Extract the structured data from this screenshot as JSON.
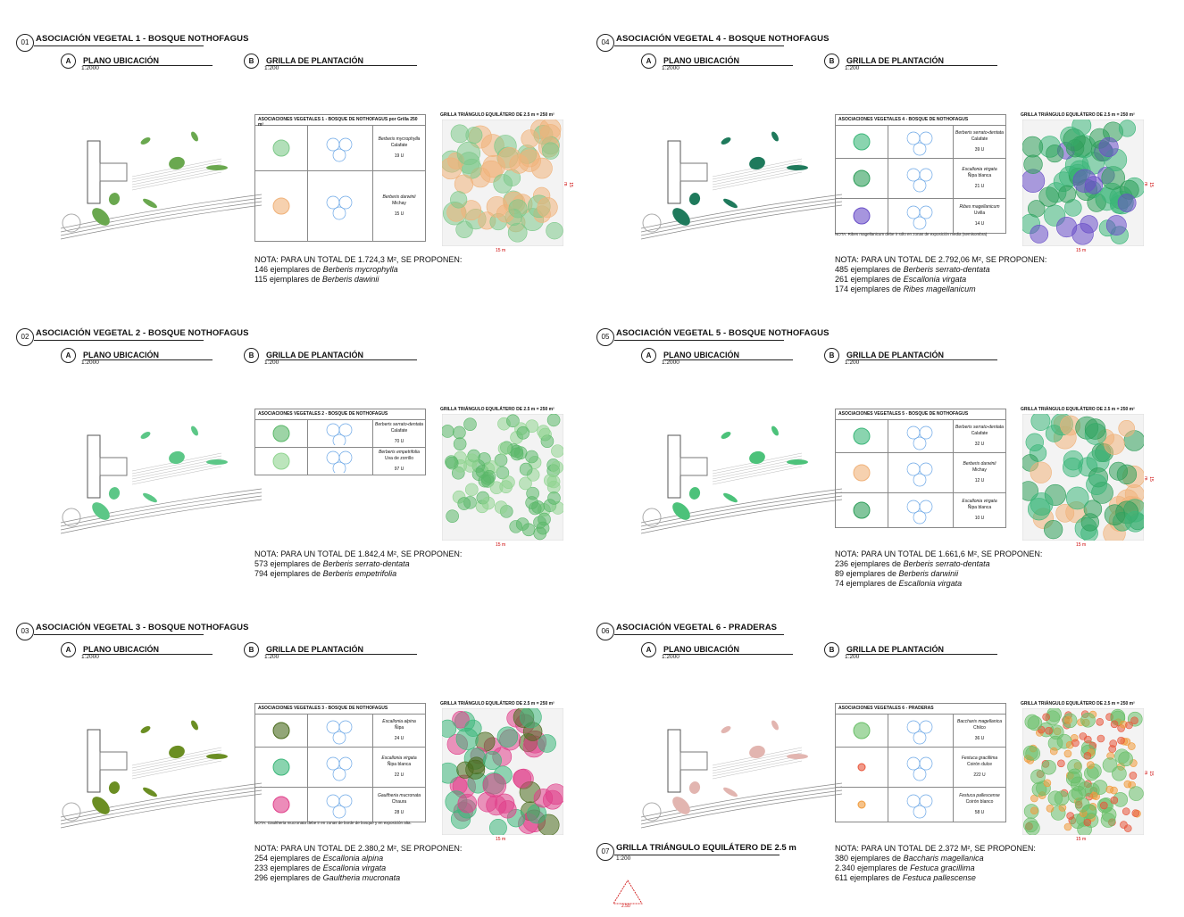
{
  "panels": [
    {
      "num": "01",
      "title": "ASOCIACIÓN VEGETAL 1  - BOSQUE NOTHOFAGUS",
      "a_letter": "A",
      "a_label": "PLANO UBICACIÓN",
      "a_scale": "1:2000",
      "b_letter": "B",
      "b_label": "GRILLA DE PLANTACIÓN",
      "b_scale": "1:200",
      "table_title": "ASOCIACIONES VEGETALES 1 - BOSQUE DE NOTHOFAGUS por Grilla 250 m²",
      "grid_title": "GRILLA TRIÁNGULO EQUILÁTERO DE 2.5 m = 250 m²",
      "grid_dim_h": "15 m",
      "grid_dim_v": "15 m",
      "rows": [
        {
          "species": "Berberis mycrophylla",
          "common": "Calafate",
          "units": "19 U",
          "color": "#7ec98a"
        },
        {
          "species": "Berberis darwinii",
          "common": "Michay",
          "units": "15 U",
          "color": "#f0b27a"
        }
      ],
      "note_header": "NOTA: PARA UN TOTAL DE 1.724,3 M², SE PROPONEN:",
      "note_lines": [
        {
          "count": "146 ejemplares de ",
          "species": "Berberis mycrophylla"
        },
        {
          "count": "115 ejemplares de ",
          "species": "Berberis dawinii"
        }
      ],
      "note_extra": "",
      "site_color": "#6aa84f",
      "grid_colors": [
        "#7ec98a",
        "#f0b27a"
      ]
    },
    {
      "num": "02",
      "title": "ASOCIACIÓN VEGETAL 2  - BOSQUE NOTHOFAGUS",
      "a_letter": "A",
      "a_label": "PLANO UBICACIÓN",
      "a_scale": "1:2000",
      "b_letter": "B",
      "b_label": "GRILLA DE PLANTACIÓN",
      "b_scale": "1:200",
      "table_title": "ASOCIACIONES VEGETALES 2 - BOSQUE DE NOTHOFAGUS",
      "grid_title": "GRILLA TRIÁNGULO EQUILÁTERO DE 2.5 m = 250 m²",
      "grid_dim_h": "15 m",
      "grid_dim_v": "",
      "rows": [
        {
          "species": "Berberis serrato-dentata",
          "common": "Calafate",
          "units": "70 U",
          "color": "#5bb86a"
        },
        {
          "species": "Berberis empetrifolia",
          "common": "Uva de zorrillo",
          "units": "97 U",
          "color": "#8fd48f"
        }
      ],
      "note_header": "NOTA: PARA UN TOTAL DE 1.842,4 M², SE PROPONEN:",
      "note_lines": [
        {
          "count": "573 ejemplares de ",
          "species": "Berberis serrato-dentata"
        },
        {
          "count": "794 ejemplares de ",
          "species": "Berberis empetrifolia"
        }
      ],
      "note_extra": "",
      "site_color": "#5cc787",
      "grid_colors": [
        "#5bb86a",
        "#8fd48f"
      ]
    },
    {
      "num": "03",
      "title": "ASOCIACIÓN VEGETAL 3  - BOSQUE NOTHOFAGUS",
      "a_letter": "A",
      "a_label": "PLANO UBICACIÓN",
      "a_scale": "1:2000",
      "b_letter": "B",
      "b_label": "GRILLA DE PLANTACIÓN",
      "b_scale": "1:200",
      "table_title": "ASOCIACIONES VEGETALES 3 - BOSQUE DE NOTHOFAGUS",
      "grid_title": "GRILLA TRIÁNGULO EQUILÁTERO DE 2.5 m = 250 m²",
      "grid_dim_h": "15 m",
      "grid_dim_v": "",
      "rows": [
        {
          "species": "Escallonia alpina",
          "common": "Ñipa",
          "units": "24 U",
          "color": "#4a6b1e"
        },
        {
          "species": "Escallonia virgata",
          "common": "Ñipa blanca",
          "units": "22 U",
          "color": "#3cb77a"
        },
        {
          "species": "Gaultheria mucronata",
          "common": "Chaura",
          "units": "28 U",
          "color": "#e0408a"
        }
      ],
      "note_header": "NOTA: PARA UN TOTAL DE 2.380,2 M², SE PROPONEN:",
      "note_lines": [
        {
          "count": "254 ejemplares de ",
          "species": "Escallonia alpina"
        },
        {
          "count": "233 ejemplares de ",
          "species": "Escallonia virgata"
        },
        {
          "count": "296 ejemplares de ",
          "species": "Gaultheria mucronata"
        }
      ],
      "note_extra": "NOTA: Gaultheria mucronata debe ir en zonas de borde de bosque y en exposición alta.",
      "site_color": "#6b8e23",
      "grid_colors": [
        "#4a6b1e",
        "#3cb77a",
        "#e0408a"
      ]
    },
    {
      "num": "04",
      "title": "ASOCIACIÓN VEGETAL 4  - BOSQUE NOTHOFAGUS",
      "a_letter": "A",
      "a_label": "PLANO UBICACIÓN",
      "a_scale": "1:2000",
      "b_letter": "B",
      "b_label": "GRILLA DE PLANTACIÓN",
      "b_scale": "1:200",
      "table_title": "ASOCIACIONES VEGETALES 4 - BOSQUE DE NOTHOFAGUS",
      "grid_title": "GRILLA TRIÁNGULO EQUILÁTERO DE 2.5 m = 250 m²",
      "grid_dim_h": "15 m",
      "grid_dim_v": "15 m",
      "rows": [
        {
          "species": "Berberis serrato-dentata",
          "common": "Calafate",
          "units": "39 U",
          "color": "#3cb77a"
        },
        {
          "species": "Escallonia virgata",
          "common": "Ñipa blanca",
          "units": "21 U",
          "color": "#2f9e5a"
        },
        {
          "species": "Ribes magellanicum",
          "common": "Uvilla",
          "units": "14 U",
          "color": "#6a4fc8"
        }
      ],
      "note_header": "NOTA: PARA UN TOTAL DE 2.792,06 M², SE PROPONEN:",
      "note_lines": [
        {
          "count": "485 ejemplares de ",
          "species": "Berberis serrato-dentata"
        },
        {
          "count": "261 ejemplares de ",
          "species": "Escallonia virgata"
        },
        {
          "count": "174 ejemplares de ",
          "species": "Ribes magellanicum"
        }
      ],
      "note_extra": "NOTA: Ribes magellanicum debe ir sólo en zonas de exposición media (semisombra)",
      "site_color": "#1f7a5c",
      "grid_colors": [
        "#3cb77a",
        "#2f9e5a",
        "#6a4fc8"
      ]
    },
    {
      "num": "05",
      "title": "ASOCIACIÓN VEGETAL 5  - BOSQUE NOTHOFAGUS",
      "a_letter": "A",
      "a_label": "PLANO UBICACIÓN",
      "a_scale": "1:2000",
      "b_letter": "B",
      "b_label": "GRILLA DE PLANTACIÓN",
      "b_scale": "1:200",
      "table_title": "ASOCIACIONES VEGETALES 5 - BOSQUE DE NOTHOFAGUS",
      "grid_title": "GRILLA TRIÁNGULO EQUILÁTERO DE 2.5 m = 250 m²",
      "grid_dim_h": "15 m",
      "grid_dim_v": "15 m",
      "rows": [
        {
          "species": "Berberis serrato-dentata",
          "common": "Calafate",
          "units": "32 U",
          "color": "#3cb77a"
        },
        {
          "species": "Berberis darwinii",
          "common": "Michay",
          "units": "12 U",
          "color": "#f0b27a"
        },
        {
          "species": "Escallonia virgata",
          "common": "Ñipa blanca",
          "units": "10 U",
          "color": "#2f9e5a"
        }
      ],
      "note_header": "NOTA: PARA UN TOTAL DE 1.661,6 M², SE PROPONEN:",
      "note_lines": [
        {
          "count": "236 ejemplares de ",
          "species": "Berberis serrato-dentata"
        },
        {
          "count": "89 ejemplares de ",
          "species": "Berberis darwinii"
        },
        {
          "count": "74 ejemplares de ",
          "species": "Escallonia virgata"
        }
      ],
      "note_extra": "",
      "site_color": "#4cc27a",
      "grid_colors": [
        "#3cb77a",
        "#f0b27a",
        "#2f9e5a"
      ]
    },
    {
      "num": "06",
      "title": "ASOCIACIÓN VEGETAL 6  - PRADERAS",
      "a_letter": "A",
      "a_label": "PLANO UBICACIÓN",
      "a_scale": "1:2000",
      "b_letter": "B",
      "b_label": "GRILLA DE PLANTACIÓN",
      "b_scale": "1:200",
      "table_title": "ASOCIACIONES VEGETALES 6 - PRADERAS",
      "grid_title": "GRILLA TRIÁNGULO EQUILÁTERO DE 2.5 m = 250 m²",
      "grid_dim_h": "15 m",
      "grid_dim_v": "15 m",
      "rows": [
        {
          "species": "Baccharis magellanica",
          "common": "Chilco",
          "units": "36 U",
          "color": "#6abf69"
        },
        {
          "species": "Festuca gracillima",
          "common": "Coirón dulce",
          "units": "222 U",
          "color": "#e8553a"
        },
        {
          "species": "Festuca pallescense",
          "common": "Coirón blanco",
          "units": "58 U",
          "color": "#f09a3a"
        }
      ],
      "note_header": "NOTA: PARA UN TOTAL DE 2.372 M², SE PROPONEN:",
      "note_lines": [
        {
          "count": "380 ejemplares de ",
          "species": "Baccharis magellanica"
        },
        {
          "count": "2.340 ejemplares de ",
          "species": "Festuca gracillima"
        },
        {
          "count": "611 ejemplares de ",
          "species": "Festuca pallescense"
        }
      ],
      "note_extra": "",
      "site_color": "#e2b5b0",
      "grid_colors": [
        "#6abf69",
        "#e8553a",
        "#f09a3a"
      ]
    }
  ],
  "grid07": {
    "num": "07",
    "title": "GRILLA TRIÁNGULO EQUILÁTERO DE 2.5 m",
    "scale": "1:200",
    "dim": "2.50"
  }
}
